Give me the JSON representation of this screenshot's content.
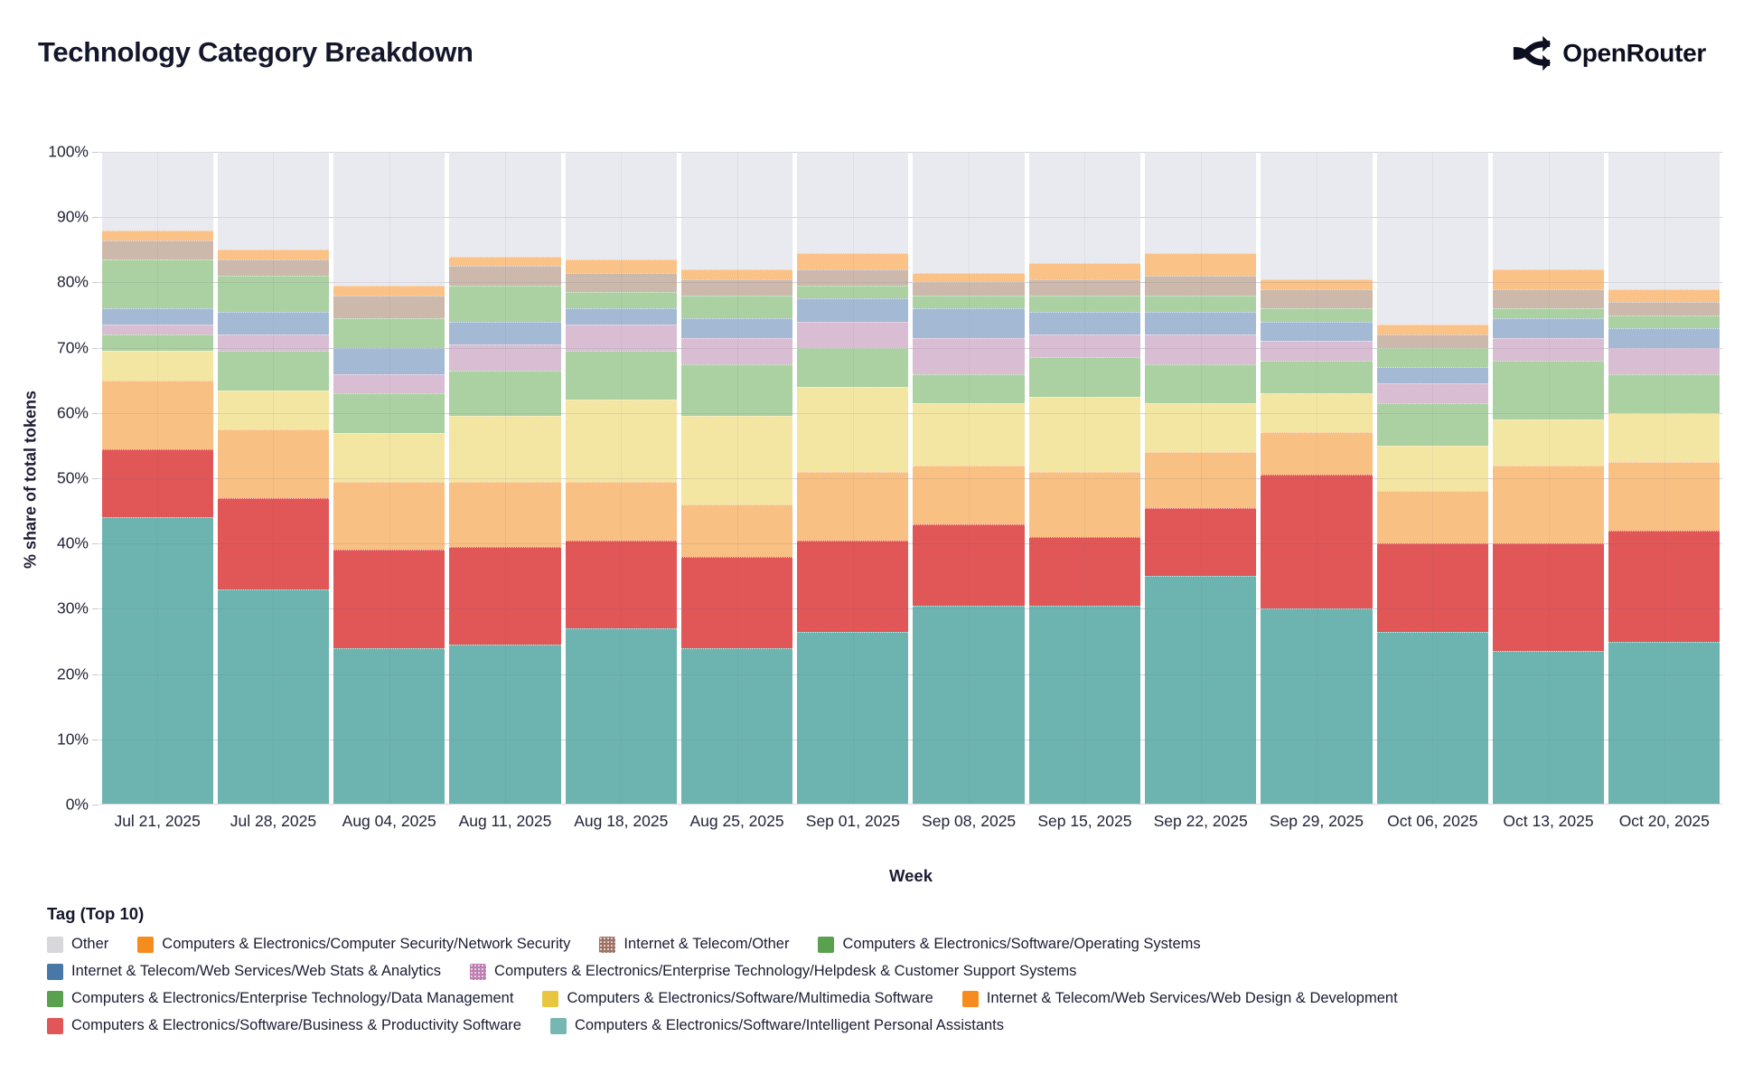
{
  "header": {
    "title": "Technology Category Breakdown",
    "brand": "OpenRouter"
  },
  "chart_data": {
    "type": "bar",
    "stacked": true,
    "units": "percent",
    "title": "Technology Category Breakdown",
    "xlabel": "Week",
    "ylabel": "% share of total tokens",
    "ylim": [
      0,
      100
    ],
    "yticks": [
      "0%",
      "10%",
      "20%",
      "30%",
      "40%",
      "50%",
      "60%",
      "70%",
      "80%",
      "90%",
      "100%"
    ],
    "grid": true,
    "legend_title": "Tag (Top 10)",
    "legend_position": "bottom",
    "categories": [
      "Jul 21, 2025",
      "Jul 28, 2025",
      "Aug 04, 2025",
      "Aug 11, 2025",
      "Aug 18, 2025",
      "Aug 25, 2025",
      "Sep 01, 2025",
      "Sep 08, 2025",
      "Sep 15, 2025",
      "Sep 22, 2025",
      "Sep 29, 2025",
      "Oct 06, 2025",
      "Oct 13, 2025",
      "Oct 20, 2025"
    ],
    "stack_order_note": "series listed bottom-to-top of the stack; values are % share of total tokens per week",
    "series": [
      {
        "key": "ipa",
        "label": "Computers & Electronics/Software/Intelligent Personal Assistants",
        "legend_color": "#76b7b2",
        "bar_color": "#6db4b0",
        "pattern": false,
        "values": [
          44,
          33,
          24,
          24.5,
          27,
          24,
          26.5,
          30.5,
          30.5,
          35,
          30,
          26.5,
          23.5,
          25
        ]
      },
      {
        "key": "bps",
        "label": "Computers & Electronics/Software/Business & Productivity Software",
        "legend_color": "#e15759",
        "bar_color": "#e15657",
        "pattern": false,
        "values": [
          10.5,
          14,
          15,
          15,
          13.5,
          14,
          14,
          12.5,
          10.5,
          10.5,
          20.5,
          13.5,
          16.5,
          17
        ]
      },
      {
        "key": "wdd",
        "label": "Internet & Telecom/Web Services/Web Design & Development",
        "legend_color": "#f78c1e",
        "bar_color": "#f9c083",
        "pattern": false,
        "values": [
          10.5,
          10.5,
          10.5,
          10,
          9,
          8,
          10.5,
          9,
          10,
          8.5,
          6.5,
          8,
          12,
          10.5
        ]
      },
      {
        "key": "mms",
        "label": "Computers & Electronics/Software/Multimedia Software",
        "legend_color": "#e8c63f",
        "bar_color": "#f3e5a2",
        "pattern": false,
        "values": [
          4.5,
          6,
          7.5,
          10,
          12.5,
          13.5,
          13,
          9.5,
          11.5,
          7.5,
          6,
          7,
          7,
          7.5
        ]
      },
      {
        "key": "dm",
        "label": "Computers & Electronics/Enterprise Technology/Data Management",
        "legend_color": "#59a14f",
        "bar_color": "#abd1a2",
        "pattern": false,
        "values": [
          2.5,
          6,
          6,
          7,
          7.5,
          8,
          6,
          4.5,
          6,
          6,
          5,
          6.5,
          9,
          6
        ]
      },
      {
        "key": "hcs",
        "label": "Computers & Electronics/Enterprise Technology/Helpdesk & Customer Support Systems",
        "legend_color": "#bd7eb0",
        "bar_color": "#d9bdd3",
        "pattern": true,
        "values": [
          1.5,
          2.5,
          3,
          4,
          4,
          4,
          4,
          5.5,
          3.5,
          4.5,
          3,
          3,
          3.5,
          4
        ]
      },
      {
        "key": "wsa",
        "label": "Internet & Telecom/Web Services/Web Stats & Analytics",
        "legend_color": "#4878a8",
        "bar_color": "#a4bad4",
        "pattern": false,
        "values": [
          2.5,
          3.5,
          4,
          3.5,
          2.5,
          3,
          3.5,
          4.5,
          3.5,
          3.5,
          3,
          2.5,
          3,
          3
        ]
      },
      {
        "key": "os",
        "label": "Computers & Electronics/Software/Operating Systems",
        "legend_color": "#59a14f",
        "bar_color": "#abd1a2",
        "pattern": false,
        "values": [
          7.5,
          5.5,
          4.5,
          5.5,
          2.5,
          3.5,
          2,
          2,
          2.5,
          2.5,
          2,
          3,
          1.5,
          2
        ]
      },
      {
        "key": "ito",
        "label": "Internet & Telecom/Other",
        "legend_color": "#a07261",
        "bar_color": "#ccb9ac",
        "pattern": true,
        "values": [
          3,
          2.5,
          3.5,
          3,
          3,
          2.5,
          2.5,
          2,
          2.5,
          3,
          3,
          2,
          3,
          2
        ]
      },
      {
        "key": "ns",
        "label": "Computers & Electronics/Computer Security/Network Security",
        "legend_color": "#f78c1e",
        "bar_color": "#fac287",
        "pattern": false,
        "values": [
          1.5,
          1.5,
          1.5,
          1.5,
          2,
          1.5,
          2.5,
          1.5,
          2.5,
          3.5,
          1.5,
          1.5,
          3,
          2
        ]
      },
      {
        "key": "other",
        "label": "Other",
        "legend_color": "#d7d7dc",
        "bar_color": "#e9e9f0",
        "pattern": false,
        "values": [
          12,
          15,
          20.5,
          16,
          16.5,
          18,
          15.5,
          18.5,
          17,
          15.5,
          19.5,
          26.5,
          18,
          21
        ]
      }
    ],
    "legend_order": [
      "other",
      "ns",
      "ito",
      "os",
      "wsa",
      "hcs",
      "dm",
      "mms",
      "wdd",
      "bps",
      "ipa"
    ]
  }
}
